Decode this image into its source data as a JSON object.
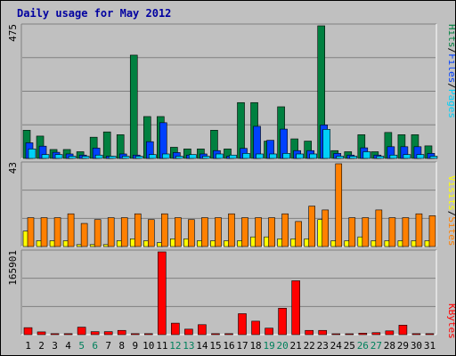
{
  "title": "Daily usage for May 2012",
  "chart_data": [
    {
      "type": "bar",
      "panel": "hits-files-pages",
      "max_label": "475",
      "legend": [
        {
          "text": "Pages",
          "color": "#00d0f8"
        },
        {
          "text": "/",
          "color": "#000000"
        },
        {
          "text": "Files",
          "color": "#0040ff"
        },
        {
          "text": "/",
          "color": "#000000"
        },
        {
          "text": "Hits",
          "color": "#008040"
        }
      ],
      "ylim": [
        0,
        475
      ],
      "series": [
        {
          "name": "Hits",
          "color": "#008040",
          "values": [
            101,
            80,
            32,
            32,
            24,
            76,
            95,
            85,
            370,
            150,
            150,
            40,
            34,
            34,
            101,
            34,
            200,
            200,
            62,
            185,
            70,
            62,
            475,
            28,
            24,
            85,
            24,
            93,
            85,
            85,
            45
          ]
        },
        {
          "name": "Files",
          "color": "#0040ff",
          "values": [
            56,
            44,
            22,
            16,
            12,
            37,
            8,
            16,
            12,
            60,
            128,
            21,
            12,
            16,
            28,
            8,
            36,
            115,
            65,
            105,
            28,
            28,
            120,
            18,
            12,
            38,
            12,
            42,
            42,
            42,
            18
          ]
        },
        {
          "name": "Pages",
          "color": "#00d0f8",
          "values": [
            34,
            14,
            14,
            8,
            8,
            12,
            8,
            8,
            8,
            14,
            16,
            8,
            14,
            8,
            16,
            12,
            18,
            16,
            16,
            18,
            16,
            16,
            104,
            8,
            8,
            24,
            8,
            12,
            14,
            14,
            8
          ]
        }
      ]
    },
    {
      "type": "bar",
      "panel": "visits-sites",
      "max_label": "43",
      "legend": [
        {
          "text": "Sites",
          "color": "#ff8000"
        },
        {
          "text": "/",
          "color": "#000000"
        },
        {
          "text": "Visits",
          "color": "#ffff00"
        }
      ],
      "ylim": [
        0,
        43
      ],
      "series": [
        {
          "name": "Visits",
          "color": "#ffff00",
          "values": [
            8,
            3,
            3,
            3,
            1,
            1,
            1,
            3,
            4,
            3,
            2,
            4,
            4,
            3,
            3,
            3,
            3,
            5,
            5,
            4,
            4,
            4,
            14,
            3,
            3,
            5,
            3,
            3,
            3,
            3,
            3
          ]
        },
        {
          "name": "Sites",
          "color": "#ff8000",
          "values": [
            15,
            15,
            15,
            17,
            12,
            14,
            15,
            15,
            17,
            14,
            17,
            15,
            14,
            15,
            15,
            17,
            15,
            15,
            15,
            17,
            13,
            21,
            19,
            43,
            15,
            15,
            19,
            15,
            15,
            17,
            16
          ]
        }
      ]
    },
    {
      "type": "bar",
      "panel": "kbytes",
      "max_label": "165901",
      "legend": [
        {
          "text": "KBytes",
          "color": "#ff0000"
        }
      ],
      "ylim": [
        0,
        165901
      ],
      "series": [
        {
          "name": "KBytes",
          "color": "#ff0000",
          "values": [
            14000,
            5500,
            2000,
            2000,
            15000,
            6000,
            6000,
            8500,
            2000,
            2000,
            165901,
            23000,
            11000,
            20000,
            2000,
            2000,
            42000,
            27000,
            13000,
            53000,
            108000,
            8500,
            8500,
            1500,
            1500,
            3000,
            4000,
            7500,
            19000,
            2000,
            2000
          ]
        }
      ]
    }
  ],
  "x_axis": {
    "days": [
      "1",
      "2",
      "3",
      "4",
      "5",
      "6",
      "7",
      "8",
      "9",
      "10",
      "11",
      "12",
      "13",
      "14",
      "15",
      "16",
      "17",
      "18",
      "19",
      "20",
      "21",
      "22",
      "23",
      "24",
      "25",
      "26",
      "27",
      "28",
      "29",
      "30",
      "31"
    ],
    "weekend_days": [
      "5",
      "6",
      "12",
      "13",
      "19",
      "20",
      "26",
      "27"
    ],
    "weekday_color": "#000000",
    "weekend_color": "#00805c"
  }
}
